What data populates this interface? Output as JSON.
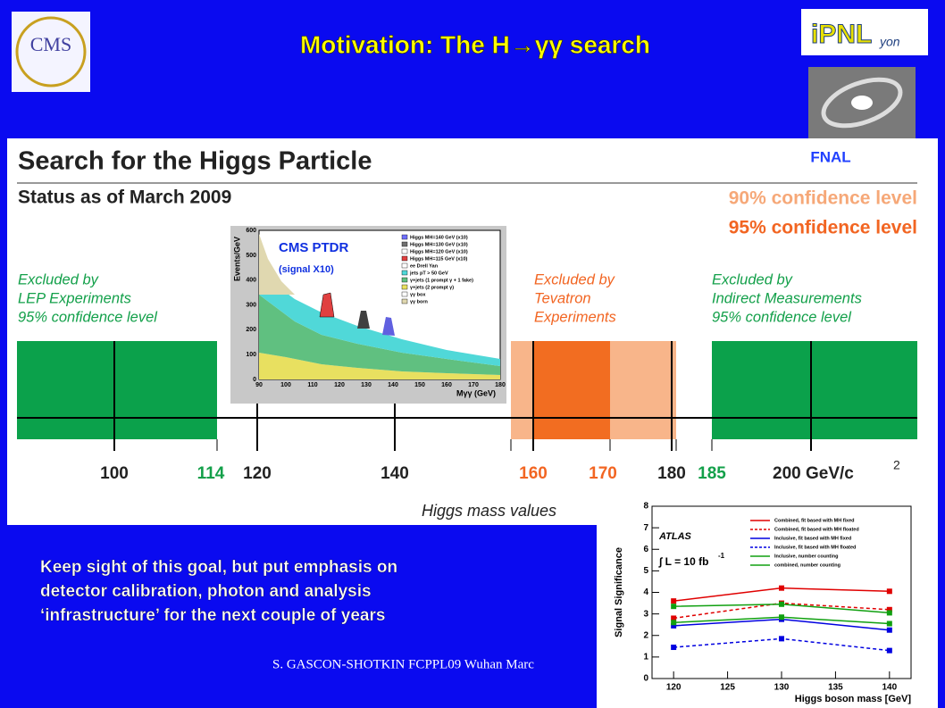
{
  "header": {
    "title": "Motivation: The H→γγ search",
    "logo_left": "CMS",
    "logo_right": "iPNL",
    "logo_right_sub": "yon"
  },
  "panel": {
    "title": "Search for the Higgs Particle",
    "status": "Status as of March 2009",
    "lab": "FNAL",
    "cl90": "90% confidence level",
    "cl95": "95% confidence level",
    "regions": [
      [
        "Excluded by",
        "LEP Experiments",
        "95% confidence level"
      ],
      [
        "Excluded by",
        "Tevatron",
        "Experiments"
      ],
      [
        "Excluded by",
        "Indirect Measurements",
        "95% confidence level"
      ]
    ],
    "mass_labels": [
      "100",
      "114",
      "120",
      "140",
      "160",
      "170",
      "180",
      "185",
      "200 GeV/c"
    ],
    "unit_sup": "2",
    "axis_title": "Higgs mass values"
  },
  "cms_plot": {
    "title": "CMS PTDR",
    "subtitle": "(signal X10)",
    "y_label": "Events/GeV",
    "x_label": "Mγγ (GeV)",
    "yticks": [
      "0",
      "100",
      "200",
      "300",
      "400",
      "500",
      "600"
    ],
    "xticks": [
      "90",
      "100",
      "110",
      "120",
      "130",
      "140",
      "150",
      "160",
      "170",
      "180"
    ],
    "legend": [
      "Higgs MH=140 GeV (x10)",
      "Higgs MH=130 GeV (x10)",
      "Higgs MH=120 GeV (x10)",
      "Higgs MH=115 GeV (x10)",
      "ee Drell Yan",
      "jets pT > 50 GeV",
      "γ+jets (1 prompt γ + 1 fake)",
      "γ+jets (2 prompt γ)",
      "γγ box",
      "γγ born"
    ]
  },
  "atlas_plot": {
    "label": "ATLAS",
    "lumi": "∫ L = 10 fb",
    "lumi_sup": "-1",
    "y_label": "Signal Significance",
    "x_label": "Higgs boson mass [GeV]",
    "x": [
      120,
      130,
      140
    ],
    "xlim": [
      118,
      142
    ],
    "xticks": [
      120,
      125,
      130,
      135,
      140
    ],
    "ylim": [
      0,
      8
    ],
    "yticks": [
      0,
      1,
      2,
      3,
      4,
      5,
      6,
      7,
      8
    ],
    "series": [
      {
        "name": "Combined, fit based with MH fixed",
        "color": "#e00000",
        "dashed": false,
        "values": [
          3.6,
          4.2,
          4.05
        ]
      },
      {
        "name": "Combined, fit based with MH floated",
        "color": "#e00000",
        "dashed": true,
        "values": [
          2.8,
          3.5,
          3.2
        ]
      },
      {
        "name": "Inclusive, fit based with MH fixed",
        "color": "#0000e0",
        "dashed": false,
        "values": [
          2.45,
          2.75,
          2.25
        ]
      },
      {
        "name": "Inclusive, fit based with MH floated",
        "color": "#0000e0",
        "dashed": true,
        "values": [
          1.45,
          1.85,
          1.3
        ]
      },
      {
        "name": "Inclusive, number counting",
        "color": "#10a010",
        "dashed": false,
        "values": [
          2.6,
          2.85,
          2.55
        ]
      },
      {
        "name": "combined, number counting",
        "color": "#10a010",
        "dashed": false,
        "values": [
          3.35,
          3.45,
          3.05
        ]
      }
    ]
  },
  "body_text": [
    "Keep sight of this goal, but put emphasis on",
    "detector calibration, photon and analysis",
    "‘infrastructure’ for the next couple of years"
  ],
  "footer": "S. GASCON-SHOTKIN FCPPL09 Wuhan Marc"
}
